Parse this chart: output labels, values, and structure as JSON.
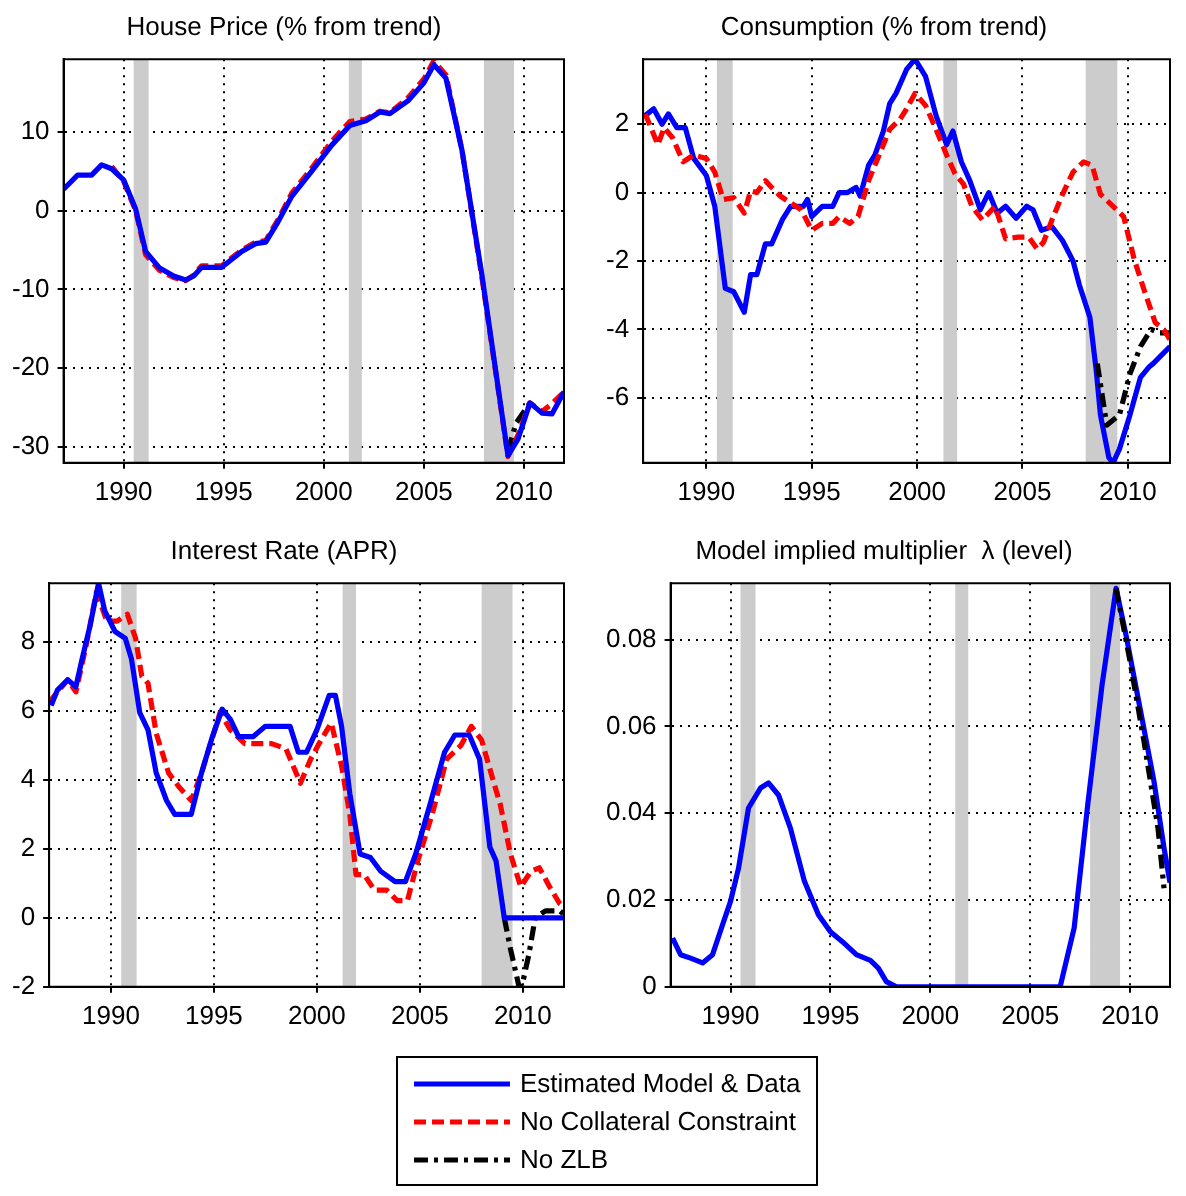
{
  "chart_data": [
    {
      "type": "line",
      "title": "House Price (% from trend)",
      "xlim": [
        1987,
        2012
      ],
      "xticks": [
        1990,
        1995,
        2000,
        2005,
        2010
      ],
      "ylim": [
        -32,
        19.2
      ],
      "yticks": [
        -30,
        -20,
        -10,
        0,
        10
      ],
      "grid": true,
      "marker": "none",
      "legend": "bottom",
      "bands": [
        {
          "axis": "x",
          "from": 1990.5,
          "to": 1991.25,
          "color": "#cccccc"
        },
        {
          "axis": "x",
          "from": 2001.25,
          "to": 2001.9,
          "color": "#cccccc"
        },
        {
          "axis": "x",
          "from": 2008,
          "to": 2009.5,
          "color": "#cccccc"
        }
      ],
      "series": [
        {
          "name": "Estimated Model & Data",
          "color": "#0000ff",
          "line_style": "solid",
          "x": [
            1987,
            1987.7,
            1988.4,
            1988.9,
            1989.4,
            1990,
            1990.6,
            1991.1,
            1991.8,
            1992.5,
            1993.1,
            1993.5,
            1993.9,
            1994.9,
            1995.9,
            1996.6,
            1997.1,
            1997.7,
            1998.4,
            1999.4,
            2000.4,
            2001.3,
            2002.1,
            2002.8,
            2003.3,
            2004.2,
            2005,
            2005.5,
            2006.1,
            2006.9,
            2007.9,
            2009.2,
            2009.7,
            2010.3,
            2010.9,
            2011.4,
            2012
          ],
          "values": [
            2.7,
            4.5,
            4.5,
            5.8,
            5.3,
            3.9,
            0.2,
            -5.2,
            -7.3,
            -8.3,
            -8.8,
            -8.3,
            -7.2,
            -7.2,
            -5.2,
            -4.2,
            -4,
            -1.5,
            1.8,
            5,
            8.3,
            10.8,
            11.4,
            12.5,
            12.3,
            13.9,
            16.2,
            18.5,
            16.8,
            7.7,
            -8.2,
            -31.1,
            -29,
            -24.4,
            -25.7,
            -25.8,
            -23
          ]
        },
        {
          "name": "No Collateral Constraint",
          "color": "#ff0000",
          "line_style": "dashed",
          "x": [
            1989.4,
            1990,
            1990.6,
            1991.1,
            1991.8,
            1992.5,
            1993.1,
            1993.5,
            1993.9,
            1994.9,
            1995.9,
            1996.6,
            1997.1,
            1997.7,
            1998.4,
            1999.4,
            2000.4,
            2001.3,
            2002.1,
            2002.8,
            2003.3,
            2004.2,
            2005,
            2005.5,
            2006.1,
            2006.9,
            2007.9,
            2009.2,
            2009.7,
            2010.3,
            2010.9,
            2011.4,
            2012
          ],
          "values": [
            5.6,
            3.7,
            0,
            -5.6,
            -7.6,
            -8.5,
            -8.9,
            -8.2,
            -7,
            -7,
            -5,
            -4,
            -3.8,
            -1.2,
            2.2,
            5.4,
            8.8,
            11.3,
            11.6,
            12.6,
            12.4,
            14.3,
            16.7,
            19,
            17.2,
            7.7,
            -8.5,
            -31.2,
            -28.5,
            -24.4,
            -25.5,
            -24.5,
            -23
          ]
        },
        {
          "name": "No ZLB",
          "color": "#000000",
          "line_style": "dashdot",
          "x": [
            2009.2,
            2009.6,
            2010.3
          ],
          "values": [
            -30.5,
            -27,
            -24.4
          ]
        }
      ]
    },
    {
      "type": "line",
      "title": "Consumption (% from trend)",
      "xlim": [
        1987,
        2012
      ],
      "xticks": [
        1990,
        1995,
        2000,
        2005,
        2010
      ],
      "ylim": [
        -7.9,
        3.9
      ],
      "yticks": [
        -6,
        -4,
        -2,
        0,
        2
      ],
      "grid": true,
      "marker": "none",
      "legend": "bottom",
      "bands": [
        {
          "axis": "x",
          "from": 1990.5,
          "to": 1991.25,
          "color": "#cccccc"
        },
        {
          "axis": "x",
          "from": 2001.25,
          "to": 2001.9,
          "color": "#cccccc"
        },
        {
          "axis": "x",
          "from": 2008,
          "to": 2009.5,
          "color": "#cccccc"
        }
      ],
      "series": [
        {
          "name": "No Collateral Constraint",
          "color": "#ff0000",
          "line_style": "dashed",
          "x": [
            1987.1,
            1987.7,
            1988,
            1988.4,
            1988.9,
            1989.4,
            1990,
            1990.4,
            1990.8,
            1991.3,
            1991.8,
            1992.1,
            1992.4,
            1992.8,
            1993.1,
            1993.5,
            1994,
            1994.5,
            1995,
            1995.5,
            1996,
            1996.3,
            1996.8,
            1997.2,
            1997.7,
            1998.2,
            1998.7,
            1999.2,
            1999.5,
            1999.9,
            2000.4,
            2000.9,
            2001.4,
            2001.8,
            2002.2,
            2002.6,
            2003.1,
            2003.7,
            2004.2,
            2004.8,
            2005.3,
            2005.7,
            2006,
            2006.4,
            2006.9,
            2007.4,
            2007.9,
            2008.3,
            2008.7,
            2009.3,
            2009.8,
            2010.3,
            2010.8,
            2011.3,
            2011.7,
            2012
          ],
          "values": [
            2.3,
            1.4,
            1.9,
            1.6,
            0.9,
            1.1,
            1,
            0.6,
            -0.2,
            -0.15,
            -0.6,
            0.05,
            0,
            0.35,
            0.15,
            -0.1,
            -0.3,
            -0.5,
            -1.1,
            -0.9,
            -0.9,
            -0.7,
            -0.9,
            -0.7,
            0.35,
            1.1,
            1.85,
            2.15,
            2.45,
            2.9,
            2.55,
            1.85,
            1.1,
            0.55,
            0.25,
            -0.4,
            -0.8,
            -0.4,
            -1.35,
            -1.3,
            -1.3,
            -1.65,
            -1.45,
            -0.8,
            -0.05,
            0.6,
            0.9,
            0.8,
            -0.05,
            -0.4,
            -0.7,
            -1.95,
            -2.9,
            -3.8,
            -4,
            -4.3
          ]
        },
        {
          "name": "No ZLB",
          "color": "#000000",
          "line_style": "dashdot",
          "x": [
            2008.55,
            2009,
            2009.6,
            2010.1,
            2010.6,
            2011.1,
            2011.5,
            2012
          ],
          "values": [
            -5,
            -6.8,
            -6.5,
            -5.3,
            -4.5,
            -4,
            -4.1,
            -4.1
          ]
        },
        {
          "name": "Estimated Model & Data",
          "color": "#0000ff",
          "line_style": "solid",
          "x": [
            1987.1,
            1987.5,
            1987.9,
            1988.2,
            1988.6,
            1989,
            1989.4,
            1990,
            1990.4,
            1990.9,
            1991.3,
            1991.8,
            1992.1,
            1992.4,
            1992.8,
            1993.1,
            1993.6,
            1994,
            1994.6,
            1994.8,
            1995,
            1995.5,
            1996,
            1996.3,
            1996.7,
            1997.1,
            1997.3,
            1997.7,
            1998,
            1998.4,
            1998.7,
            1999,
            1999.5,
            1999.9,
            2000.4,
            2000.9,
            2001.4,
            2001.7,
            2002.1,
            2002.5,
            2003,
            2003.4,
            2003.8,
            2004.2,
            2004.7,
            2005.2,
            2005.5,
            2005.9,
            2006.4,
            2006.9,
            2007.4,
            2007.7,
            2008.2,
            2008.5,
            2008.7,
            2009.1,
            2009.3,
            2009.6,
            2010.1,
            2010.6,
            2011,
            2011.2,
            2012
          ],
          "values": [
            2.25,
            2.45,
            2,
            2.3,
            1.9,
            1.9,
            1,
            0.5,
            -0.4,
            -2.8,
            -2.9,
            -3.5,
            -2.4,
            -2.4,
            -1.5,
            -1.5,
            -0.8,
            -0.4,
            -0.4,
            -0.2,
            -0.7,
            -0.4,
            -0.4,
            0,
            0,
            0.15,
            -0.1,
            0.8,
            1.1,
            1.8,
            2.6,
            2.9,
            3.6,
            3.9,
            3.4,
            2.25,
            1.4,
            1.8,
            0.9,
            0.35,
            -0.5,
            0,
            -0.6,
            -0.4,
            -0.75,
            -0.4,
            -0.5,
            -1.1,
            -1,
            -1.4,
            -2,
            -2.7,
            -3.65,
            -5.2,
            -6.5,
            -7.75,
            -7.9,
            -7.5,
            -6.5,
            -5.4,
            -5.1,
            -5,
            -4.5
          ]
        }
      ]
    },
    {
      "type": "line",
      "title": "Interest Rate (APR)",
      "xlim": [
        1987,
        2012
      ],
      "xticks": [
        1990,
        1995,
        2000,
        2005,
        2010
      ],
      "ylim": [
        -2,
        9.7
      ],
      "yticks": [
        -2,
        0,
        2,
        4,
        6,
        8
      ],
      "grid": true,
      "marker": "none",
      "legend": "bottom",
      "bands": [
        {
          "axis": "x",
          "from": 1990.5,
          "to": 1991.25,
          "color": "#cccccc"
        },
        {
          "axis": "x",
          "from": 2001.25,
          "to": 2001.9,
          "color": "#cccccc"
        },
        {
          "axis": "x",
          "from": 2008,
          "to": 2009.5,
          "color": "#cccccc"
        }
      ],
      "series": [
        {
          "name": "Estimated Model & Data",
          "color": "#0000ff",
          "line_style": "solid",
          "x": [
            1987.1,
            1987.4,
            1987.9,
            1988.3,
            1988.6,
            1989,
            1989.4,
            1989.7,
            1990.2,
            1990.7,
            1991,
            1991.4,
            1991.8,
            1992.2,
            1992.7,
            1993.1,
            1993.9,
            1994.4,
            1994.9,
            1995.4,
            1995.8,
            1996.2,
            1996.9,
            1997.5,
            1998.7,
            1999.1,
            1999.5,
            2000,
            2000.6,
            2000.9,
            2001.2,
            2001.6,
            2002.1,
            2002.6,
            2003.1,
            2003.8,
            2004.3,
            2004.8,
            2005.5,
            2006.2,
            2006.7,
            2007.4,
            2007.9,
            2008.4,
            2008.7,
            2009.1,
            2012
          ],
          "values": [
            6.15,
            6.6,
            6.9,
            6.7,
            7.5,
            8.5,
            9.7,
            8.9,
            8.3,
            8.1,
            7.5,
            5.95,
            5.45,
            4.2,
            3.4,
            3,
            3,
            4.2,
            5.2,
            6.05,
            5.75,
            5.25,
            5.25,
            5.55,
            5.55,
            4.8,
            4.8,
            5.45,
            6.45,
            6.45,
            5.55,
            3.6,
            1.85,
            1.75,
            1.35,
            1.05,
            1.05,
            1.85,
            3.3,
            4.8,
            5.3,
            5.3,
            4.6,
            2.05,
            1.65,
            0,
            0
          ]
        },
        {
          "name": "No Collateral Constraint",
          "color": "#ff0000",
          "line_style": "dashed",
          "x": [
            1987,
            1987.9,
            1988.3,
            1988.8,
            1989.3,
            1989.8,
            1990.3,
            1990.8,
            1991.2,
            1991.5,
            1991.8,
            1992.2,
            1992.8,
            1993.3,
            1993.9,
            1994.4,
            1995.3,
            1995.8,
            1996.5,
            1997.2,
            1997.8,
            1998.5,
            1999.2,
            1999.7,
            2000.2,
            2000.7,
            2001.2,
            2001.6,
            2001.9,
            2002.3,
            2002.8,
            2003.4,
            2003.9,
            2004.4,
            2004.9,
            2005.6,
            2006.3,
            2007,
            2007.5,
            2008,
            2008.6,
            2008.9,
            2009.4,
            2009.9,
            2010.4,
            2010.8,
            2011.3,
            2011.8,
            2012
          ],
          "values": [
            6.25,
            6.9,
            6.55,
            7.9,
            9.45,
            8.6,
            8.6,
            8.8,
            8.1,
            7,
            6.8,
            5.35,
            4.2,
            3.8,
            3.4,
            4.2,
            5.95,
            5.45,
            5.05,
            5.05,
            5.05,
            4.9,
            3.9,
            4.6,
            5.15,
            5.65,
            4.4,
            3,
            1.25,
            1.25,
            0.8,
            0.8,
            0.5,
            0.5,
            1.65,
            3,
            4.6,
            5,
            5.55,
            5.15,
            3.9,
            3.3,
            1.85,
            0.9,
            1.35,
            1.45,
            0.9,
            0.4,
            0.3
          ]
        },
        {
          "name": "No ZLB",
          "color": "#000000",
          "line_style": "dashdot",
          "x": [
            2009.1,
            2009.4,
            2009.8,
            2009.95,
            2010.3,
            2010.6,
            2011.1,
            2011.8,
            2012
          ],
          "values": [
            0,
            -0.9,
            -1.95,
            -2,
            -1.05,
            0,
            0.2,
            0.2,
            0.1
          ]
        }
      ]
    },
    {
      "type": "line",
      "title": "Model implied multiplier  λ (level)",
      "xlim": [
        1987,
        2012
      ],
      "xticks": [
        1990,
        1995,
        2000,
        2005,
        2010
      ],
      "ylim": [
        0,
        0.093
      ],
      "yticks": [
        0,
        0.02,
        0.04,
        0.06,
        0.08
      ],
      "grid": true,
      "marker": "none",
      "legend": "bottom",
      "bands": [
        {
          "axis": "x",
          "from": 1990.5,
          "to": 1991.25,
          "color": "#cccccc"
        },
        {
          "axis": "x",
          "from": 2001.25,
          "to": 2001.9,
          "color": "#cccccc"
        },
        {
          "axis": "x",
          "from": 2008,
          "to": 2009.5,
          "color": "#cccccc"
        }
      ],
      "series": [
        {
          "name": "No ZLB",
          "color": "#000000",
          "line_style": "dashdot",
          "x": [
            2009.3,
            2010,
            2010.7,
            2011.4,
            2011.7
          ],
          "values": [
            0.0918,
            0.075,
            0.0565,
            0.0365,
            0.0227
          ]
        },
        {
          "name": "Estimated Model & Data",
          "color": "#0000ff",
          "line_style": "solid",
          "x": [
            1987.1,
            1987.5,
            1988,
            1988.6,
            1989.1,
            1989.6,
            1990,
            1990.4,
            1990.9,
            1991.5,
            1991.9,
            1992.4,
            1993,
            1993.7,
            1994.4,
            1995,
            1995.6,
            1996.3,
            1997,
            1997.4,
            1997.8,
            1998.3,
            2006.5,
            2007.2,
            2007.9,
            2008.6,
            2009.3,
            2009.8,
            2010.5,
            2011.2,
            2011.7,
            2012
          ],
          "values": [
            0.0112,
            0.0074,
            0.0066,
            0.0055,
            0.0074,
            0.0143,
            0.0197,
            0.0273,
            0.0412,
            0.0458,
            0.047,
            0.0442,
            0.0365,
            0.0243,
            0.0166,
            0.0127,
            0.0104,
            0.0074,
            0.0061,
            0.0043,
            0.0012,
            0,
            0,
            0.0135,
            0.0427,
            0.0696,
            0.0918,
            0.081,
            0.0642,
            0.0473,
            0.032,
            0.024
          ]
        }
      ]
    }
  ]
}
